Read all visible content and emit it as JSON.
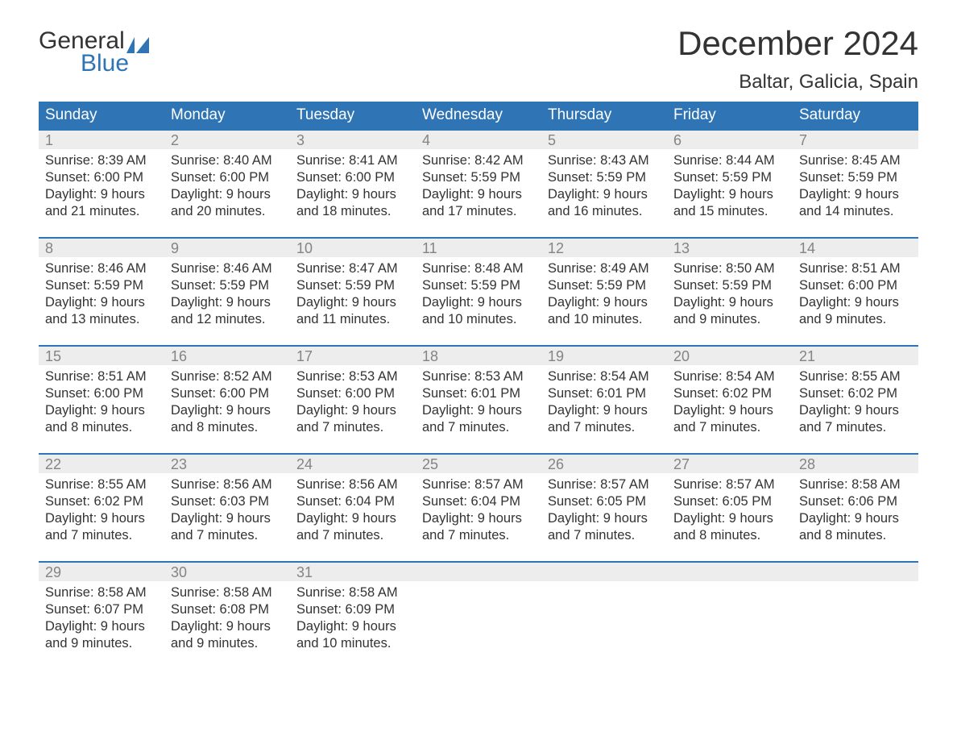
{
  "logo": {
    "text_top": "General",
    "text_bottom": "Blue"
  },
  "title": "December 2024",
  "location": "Baltar, Galicia, Spain",
  "colors": {
    "header_bg": "#2f74b5",
    "header_text": "#ffffff",
    "daynum_bg": "#ededed",
    "daynum_text": "#848484",
    "body_text": "#333333",
    "rule": "#2f74b5",
    "page_bg": "#ffffff"
  },
  "typography": {
    "title_fontsize": 42,
    "location_fontsize": 24,
    "header_fontsize": 19,
    "daynum_fontsize": 18,
    "body_fontsize": 16.5
  },
  "day_headers": [
    "Sunday",
    "Monday",
    "Tuesday",
    "Wednesday",
    "Thursday",
    "Friday",
    "Saturday"
  ],
  "weeks": [
    [
      {
        "day": "1",
        "sunrise": "8:39 AM",
        "sunset": "6:00 PM",
        "daylight": "9 hours and 21 minutes."
      },
      {
        "day": "2",
        "sunrise": "8:40 AM",
        "sunset": "6:00 PM",
        "daylight": "9 hours and 20 minutes."
      },
      {
        "day": "3",
        "sunrise": "8:41 AM",
        "sunset": "6:00 PM",
        "daylight": "9 hours and 18 minutes."
      },
      {
        "day": "4",
        "sunrise": "8:42 AM",
        "sunset": "5:59 PM",
        "daylight": "9 hours and 17 minutes."
      },
      {
        "day": "5",
        "sunrise": "8:43 AM",
        "sunset": "5:59 PM",
        "daylight": "9 hours and 16 minutes."
      },
      {
        "day": "6",
        "sunrise": "8:44 AM",
        "sunset": "5:59 PM",
        "daylight": "9 hours and 15 minutes."
      },
      {
        "day": "7",
        "sunrise": "8:45 AM",
        "sunset": "5:59 PM",
        "daylight": "9 hours and 14 minutes."
      }
    ],
    [
      {
        "day": "8",
        "sunrise": "8:46 AM",
        "sunset": "5:59 PM",
        "daylight": "9 hours and 13 minutes."
      },
      {
        "day": "9",
        "sunrise": "8:46 AM",
        "sunset": "5:59 PM",
        "daylight": "9 hours and 12 minutes."
      },
      {
        "day": "10",
        "sunrise": "8:47 AM",
        "sunset": "5:59 PM",
        "daylight": "9 hours and 11 minutes."
      },
      {
        "day": "11",
        "sunrise": "8:48 AM",
        "sunset": "5:59 PM",
        "daylight": "9 hours and 10 minutes."
      },
      {
        "day": "12",
        "sunrise": "8:49 AM",
        "sunset": "5:59 PM",
        "daylight": "9 hours and 10 minutes."
      },
      {
        "day": "13",
        "sunrise": "8:50 AM",
        "sunset": "5:59 PM",
        "daylight": "9 hours and 9 minutes."
      },
      {
        "day": "14",
        "sunrise": "8:51 AM",
        "sunset": "6:00 PM",
        "daylight": "9 hours and 9 minutes."
      }
    ],
    [
      {
        "day": "15",
        "sunrise": "8:51 AM",
        "sunset": "6:00 PM",
        "daylight": "9 hours and 8 minutes."
      },
      {
        "day": "16",
        "sunrise": "8:52 AM",
        "sunset": "6:00 PM",
        "daylight": "9 hours and 8 minutes."
      },
      {
        "day": "17",
        "sunrise": "8:53 AM",
        "sunset": "6:00 PM",
        "daylight": "9 hours and 7 minutes."
      },
      {
        "day": "18",
        "sunrise": "8:53 AM",
        "sunset": "6:01 PM",
        "daylight": "9 hours and 7 minutes."
      },
      {
        "day": "19",
        "sunrise": "8:54 AM",
        "sunset": "6:01 PM",
        "daylight": "9 hours and 7 minutes."
      },
      {
        "day": "20",
        "sunrise": "8:54 AM",
        "sunset": "6:02 PM",
        "daylight": "9 hours and 7 minutes."
      },
      {
        "day": "21",
        "sunrise": "8:55 AM",
        "sunset": "6:02 PM",
        "daylight": "9 hours and 7 minutes."
      }
    ],
    [
      {
        "day": "22",
        "sunrise": "8:55 AM",
        "sunset": "6:02 PM",
        "daylight": "9 hours and 7 minutes."
      },
      {
        "day": "23",
        "sunrise": "8:56 AM",
        "sunset": "6:03 PM",
        "daylight": "9 hours and 7 minutes."
      },
      {
        "day": "24",
        "sunrise": "8:56 AM",
        "sunset": "6:04 PM",
        "daylight": "9 hours and 7 minutes."
      },
      {
        "day": "25",
        "sunrise": "8:57 AM",
        "sunset": "6:04 PM",
        "daylight": "9 hours and 7 minutes."
      },
      {
        "day": "26",
        "sunrise": "8:57 AM",
        "sunset": "6:05 PM",
        "daylight": "9 hours and 7 minutes."
      },
      {
        "day": "27",
        "sunrise": "8:57 AM",
        "sunset": "6:05 PM",
        "daylight": "9 hours and 8 minutes."
      },
      {
        "day": "28",
        "sunrise": "8:58 AM",
        "sunset": "6:06 PM",
        "daylight": "9 hours and 8 minutes."
      }
    ],
    [
      {
        "day": "29",
        "sunrise": "8:58 AM",
        "sunset": "6:07 PM",
        "daylight": "9 hours and 9 minutes."
      },
      {
        "day": "30",
        "sunrise": "8:58 AM",
        "sunset": "6:08 PM",
        "daylight": "9 hours and 9 minutes."
      },
      {
        "day": "31",
        "sunrise": "8:58 AM",
        "sunset": "6:09 PM",
        "daylight": "9 hours and 10 minutes."
      },
      null,
      null,
      null,
      null
    ]
  ],
  "labels": {
    "sunrise": "Sunrise: ",
    "sunset": "Sunset: ",
    "daylight": "Daylight: "
  }
}
